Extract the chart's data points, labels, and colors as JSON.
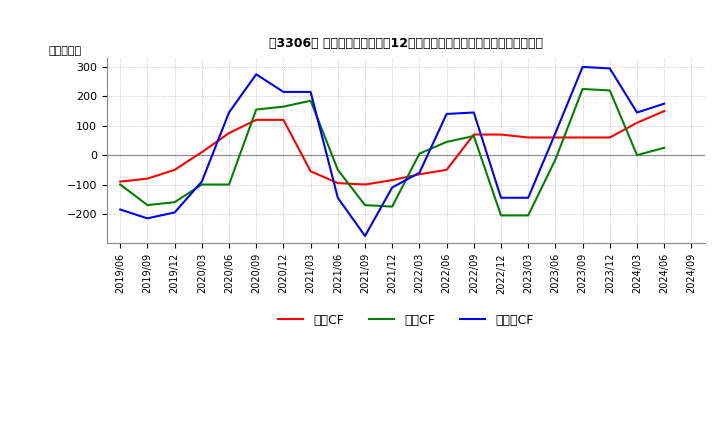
{
  "title": "［3306］ キャッシュフローの12か月移動合計の対前年同期増減額の推移",
  "ylabel": "（百万円）",
  "ylim": [
    -300,
    330
  ],
  "yticks": [
    -200,
    -100,
    0,
    100,
    200,
    300
  ],
  "background_color": "#ffffff",
  "grid_color": "#aaaaaa",
  "dates": [
    "2019/06",
    "2019/09",
    "2019/12",
    "2020/03",
    "2020/06",
    "2020/09",
    "2020/12",
    "2021/03",
    "2021/06",
    "2021/09",
    "2021/12",
    "2022/03",
    "2022/06",
    "2022/09",
    "2022/12",
    "2023/03",
    "2023/06",
    "2023/09",
    "2023/12",
    "2024/03",
    "2024/06",
    "2024/09"
  ],
  "operating_cf": [
    -90,
    -80,
    -50,
    10,
    75,
    120,
    120,
    -55,
    -95,
    -100,
    -85,
    -65,
    -50,
    70,
    70,
    60,
    60,
    60,
    60,
    110,
    150,
    null
  ],
  "investing_cf": [
    -100,
    -170,
    -160,
    -100,
    -100,
    155,
    165,
    185,
    -50,
    -170,
    -175,
    5,
    45,
    65,
    -205,
    -205,
    -15,
    225,
    220,
    0,
    25,
    null
  ],
  "free_cf": [
    -185,
    -215,
    -195,
    -90,
    145,
    275,
    215,
    215,
    -145,
    -275,
    -110,
    -60,
    140,
    145,
    -145,
    -145,
    75,
    300,
    295,
    145,
    175,
    null
  ],
  "line_colors": {
    "operating_cf": "#ff0000",
    "investing_cf": "#008000",
    "free_cf": "#0000ff"
  },
  "legend_labels": {
    "operating_cf": "営業CF",
    "investing_cf": "投資CF",
    "free_cf": "フリーCF"
  }
}
